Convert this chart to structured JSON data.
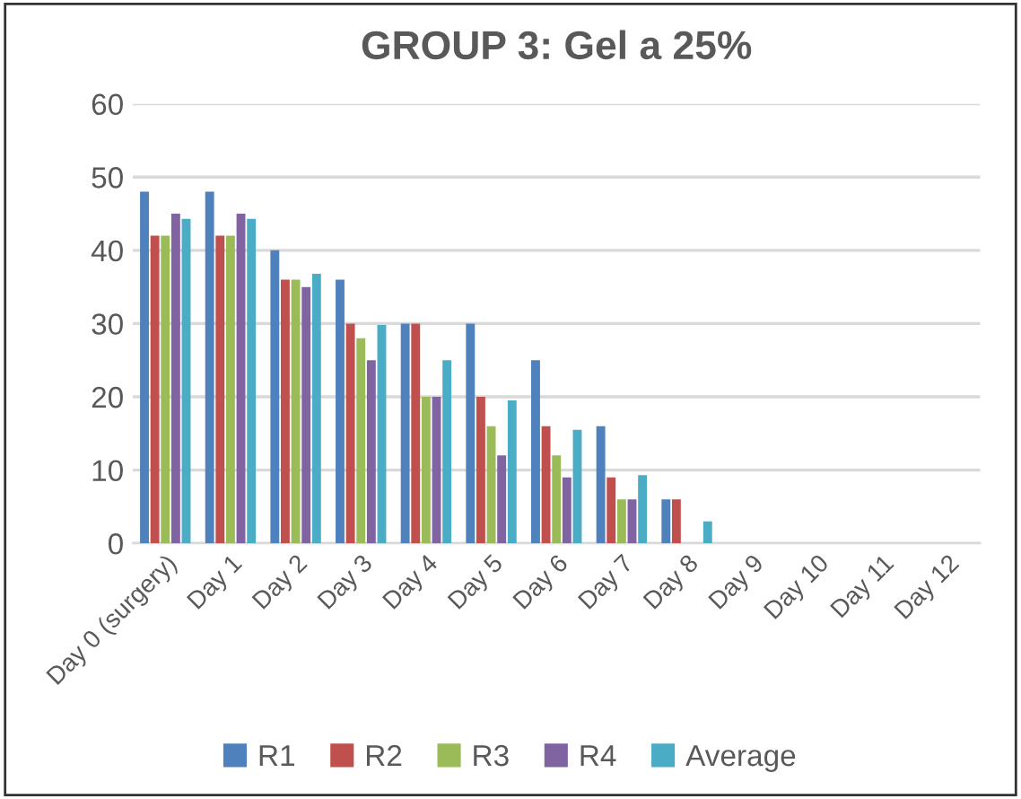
{
  "chart_data": {
    "type": "bar",
    "title": "GROUP 3: Gel a 25%",
    "categories": [
      "Day 0 (surgery)",
      "Day 1",
      "Day 2",
      "Day 3",
      "Day 4",
      "Day 5",
      "Day 6",
      "Day 7",
      "Day 8",
      "Day 9",
      "Day 10",
      "Day 11",
      "Day 12"
    ],
    "series": [
      {
        "name": "R1",
        "color": "#4f81bd",
        "values": [
          48,
          48,
          40,
          36,
          30,
          30,
          25,
          16,
          6,
          0,
          0,
          0,
          0
        ]
      },
      {
        "name": "R2",
        "color": "#c0504d",
        "values": [
          42,
          42,
          36,
          30,
          30,
          20,
          16,
          9,
          6,
          0,
          0,
          0,
          0
        ]
      },
      {
        "name": "R3",
        "color": "#9bbb59",
        "values": [
          42,
          42,
          36,
          28,
          20,
          16,
          12,
          6,
          0,
          0,
          0,
          0,
          0
        ]
      },
      {
        "name": "R4",
        "color": "#8064a2",
        "values": [
          45,
          45,
          35,
          25,
          20,
          12,
          9,
          6,
          0,
          0,
          0,
          0,
          0
        ]
      },
      {
        "name": "Average",
        "color": "#4bacc6",
        "values": [
          44.3,
          44.3,
          36.8,
          29.8,
          25,
          19.5,
          15.5,
          9.3,
          3,
          0,
          0,
          0,
          0
        ]
      }
    ],
    "ylim": [
      0,
      60
    ],
    "yticks": [
      0,
      10,
      20,
      30,
      40,
      50,
      60
    ],
    "grid": "y",
    "legend": "bottom"
  }
}
